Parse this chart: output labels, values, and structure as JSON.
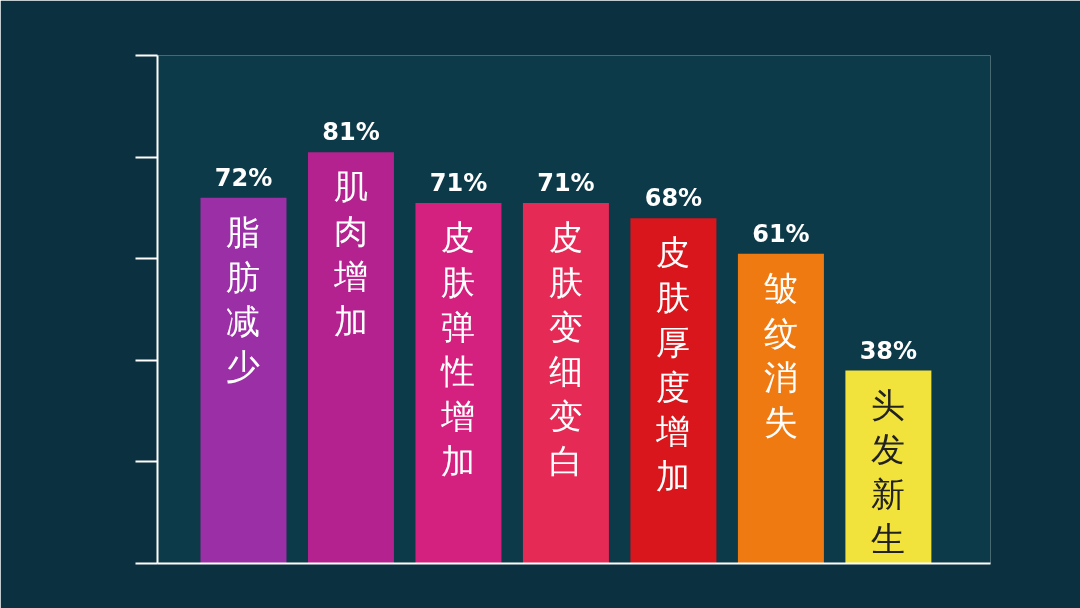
{
  "chart_data": {
    "type": "bar",
    "categories": [
      "脂肪减少",
      "肌肉增加",
      "皮肤弹性增加",
      "皮肤变细变白",
      "皮肤厚度增加",
      "皱纹消失",
      "头发新生"
    ],
    "values": [
      72,
      81,
      71,
      71,
      68,
      61,
      38
    ],
    "value_labels": [
      "72%",
      "81%",
      "71%",
      "71%",
      "68%",
      "61%",
      "38%"
    ],
    "colors": [
      "#9a2fa6",
      "#b3228f",
      "#d4217f",
      "#e52a55",
      "#d8161c",
      "#f07a12",
      "#f1e23c"
    ]
  }
}
